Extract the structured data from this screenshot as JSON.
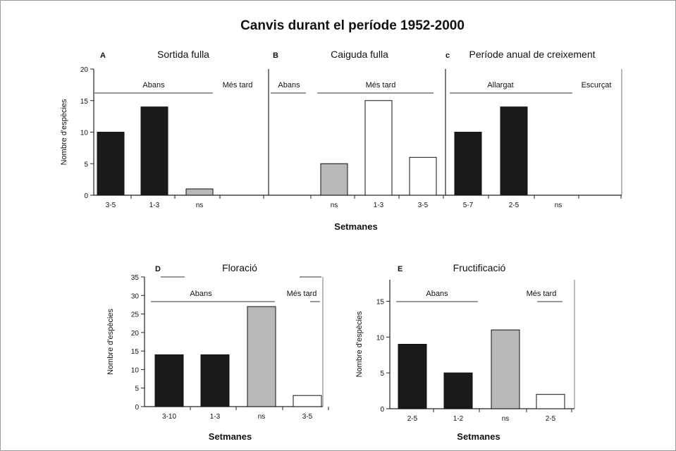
{
  "figure": {
    "title": "Canvis durant el període 1952-2000",
    "colors": {
      "black": "#1a1a1a",
      "gray": "#b8b8b8",
      "white": "#ffffff",
      "frame": "#777777"
    }
  },
  "chart_data": [
    {
      "id": "A",
      "type": "bar",
      "letter": "A",
      "title": "Sortida fulla",
      "ylabel": "Nombre d'espècies",
      "ylim": [
        0,
        20
      ],
      "yticks": [
        0,
        5,
        10,
        15,
        20
      ],
      "categories": [
        "3-5",
        "1-3",
        "ns",
        ""
      ],
      "values": [
        10,
        14,
        1,
        0
      ],
      "fills": [
        "black",
        "black",
        "gray",
        "none"
      ],
      "annotations": [
        {
          "text": "Abans",
          "line": true
        },
        {
          "text": "Més tard",
          "line": false
        }
      ]
    },
    {
      "id": "B",
      "type": "bar",
      "letter": "B",
      "title": "Caiguda fulla",
      "ylim": [
        0,
        20
      ],
      "categories": [
        "",
        "ns",
        "1-3",
        "3-5"
      ],
      "values": [
        0,
        5,
        15,
        6
      ],
      "fills": [
        "none",
        "gray",
        "white",
        "white"
      ],
      "annotations": [
        {
          "text": "Abans",
          "line": true
        },
        {
          "text": "Més tard",
          "line": true
        }
      ]
    },
    {
      "id": "C",
      "type": "bar",
      "letter": "c",
      "title": "Període anual de creixement",
      "ylim": [
        0,
        20
      ],
      "categories": [
        "5-7",
        "2-5",
        "ns",
        ""
      ],
      "values": [
        10,
        14,
        0,
        0
      ],
      "fills": [
        "black",
        "black",
        "gray",
        "none"
      ],
      "annotations": [
        {
          "text": "Allargat",
          "line": true
        },
        {
          "text": "Escurçat",
          "line": false
        }
      ]
    },
    {
      "id": "D",
      "type": "bar",
      "letter": "D",
      "title": "Floració",
      "ylabel": "Nombre d'espècies",
      "xlabel": "Setmanes",
      "ylim": [
        0,
        35
      ],
      "yticks": [
        0,
        5,
        10,
        15,
        20,
        25,
        30,
        35
      ],
      "categories": [
        "3-10",
        "1-3",
        "ns",
        "3-5"
      ],
      "values": [
        14,
        14,
        27,
        3
      ],
      "fills": [
        "black",
        "black",
        "gray",
        "white"
      ],
      "annotations": [
        {
          "text": "Abans",
          "line": true
        },
        {
          "text": "Més tard",
          "line": true
        }
      ]
    },
    {
      "id": "E",
      "type": "bar",
      "letter": "E",
      "title": "Fructificació",
      "ylabel": "Nombre d'espècies",
      "xlabel": "Setmanes",
      "ylim": [
        0,
        18
      ],
      "yticks": [
        0,
        5,
        10,
        15
      ],
      "categories": [
        "2-5",
        "1-2",
        "ns",
        "2-5"
      ],
      "values": [
        9,
        5,
        11,
        2
      ],
      "fills": [
        "black",
        "black",
        "gray",
        "white"
      ],
      "annotations": [
        {
          "text": "Abans",
          "line": true
        },
        {
          "text": "Més tard",
          "line": true
        }
      ]
    }
  ],
  "shared": {
    "top_xlabel": "Setmanes"
  }
}
